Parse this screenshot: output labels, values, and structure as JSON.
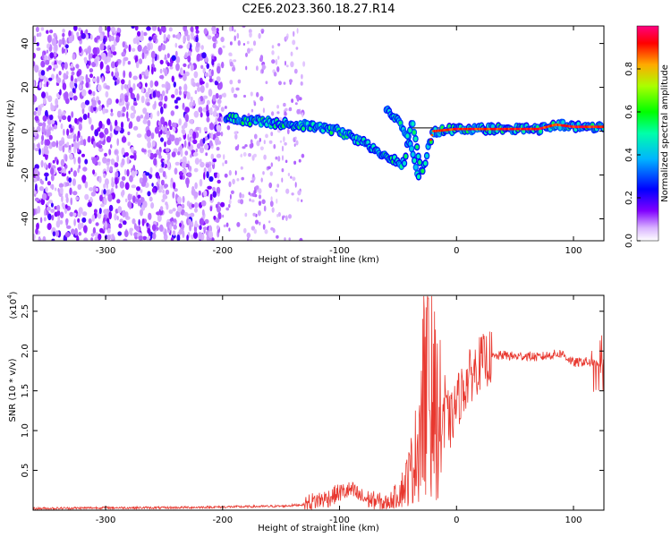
{
  "figure_title": "C2E6.2023.360.18.27.R14",
  "chart_data": [
    {
      "type": "heatmap",
      "title": "",
      "xlabel": "Height of straight line (km)",
      "ylabel": "Frequency (Hz)",
      "xlim": [
        -362,
        126
      ],
      "ylim": [
        -50,
        48
      ],
      "xticks": [
        -300,
        -200,
        -100,
        0,
        100
      ],
      "xtick_labels": [
        "-300",
        "-200",
        "-100",
        "0",
        "100"
      ],
      "yticks": [
        -40,
        -20,
        0,
        20,
        40
      ],
      "ytick_labels": [
        "-40",
        "-20",
        "0",
        "20",
        "40"
      ],
      "colorbar": {
        "label": "Normalized spectral amplitude",
        "range": [
          0,
          1
        ],
        "ticks": [
          0.0,
          0.2,
          0.4,
          0.6,
          0.8
        ],
        "tick_labels": [
          "0.0",
          "0.2",
          "0.4",
          "0.6",
          "0.8"
        ],
        "colormap": "rainbow"
      },
      "features": {
        "noise_region_x": [
          -362,
          -200
        ],
        "sparse_noise_x": [
          -200,
          -130
        ],
        "signal_track": {
          "x": [
            -197,
            -180,
            -160,
            -140,
            -120,
            -100,
            -80,
            -60,
            -45,
            -38,
            -30,
            -20,
            0,
            40,
            70,
            85,
            100,
            126
          ],
          "y": [
            6,
            5,
            4,
            3,
            2,
            0,
            -5,
            -12,
            -15,
            5,
            -20,
            0,
            1,
            1,
            1,
            3,
            2,
            2
          ]
        },
        "branch_track": {
          "x": [
            -60,
            -50,
            -40,
            -32
          ],
          "y": [
            10,
            5,
            -5,
            -22
          ]
        },
        "reference_line_y": 1.5,
        "reference_line_x": [
          -40,
          126
        ]
      }
    },
    {
      "type": "line",
      "title": "",
      "xlabel": "Height of straight line (km)",
      "ylabel": "SNR (10 * v/v)",
      "y_multiplier": "(x10",
      "y_multiplier_exp": "4",
      "y_multiplier_close": ")",
      "xlim": [
        -362,
        126
      ],
      "ylim": [
        0,
        2.7
      ],
      "xticks": [
        -300,
        -200,
        -100,
        0,
        100
      ],
      "xtick_labels": [
        "-300",
        "-200",
        "-100",
        "0",
        "100"
      ],
      "yticks": [
        0.5,
        1.0,
        1.5,
        2.0,
        2.5
      ],
      "ytick_labels": [
        "0.5",
        "1.0",
        "1.5",
        "2.0",
        "2.5"
      ],
      "series_color": "#e8382f",
      "series": [
        {
          "x": [
            -362,
            -300,
            -250,
            -200,
            -150,
            -130,
            -120,
            -110,
            -100,
            -90,
            -80,
            -70,
            -60,
            -50,
            -45,
            -40,
            -35,
            -30,
            -25,
            -20,
            -15,
            -10,
            -5,
            0,
            10,
            20,
            30,
            40,
            50,
            60,
            70,
            80,
            90,
            100,
            110,
            120,
            126
          ],
          "y": [
            0.02,
            0.03,
            0.03,
            0.04,
            0.05,
            0.07,
            0.12,
            0.15,
            0.22,
            0.25,
            0.15,
            0.12,
            0.08,
            0.2,
            0.3,
            0.45,
            0.7,
            1.2,
            1.9,
            1.4,
            1.1,
            1.25,
            1.1,
            1.35,
            1.65,
            1.85,
            1.92,
            1.95,
            1.93,
            1.94,
            1.92,
            1.95,
            1.97,
            1.85,
            1.87,
            1.82,
            1.86
          ]
        }
      ]
    }
  ]
}
